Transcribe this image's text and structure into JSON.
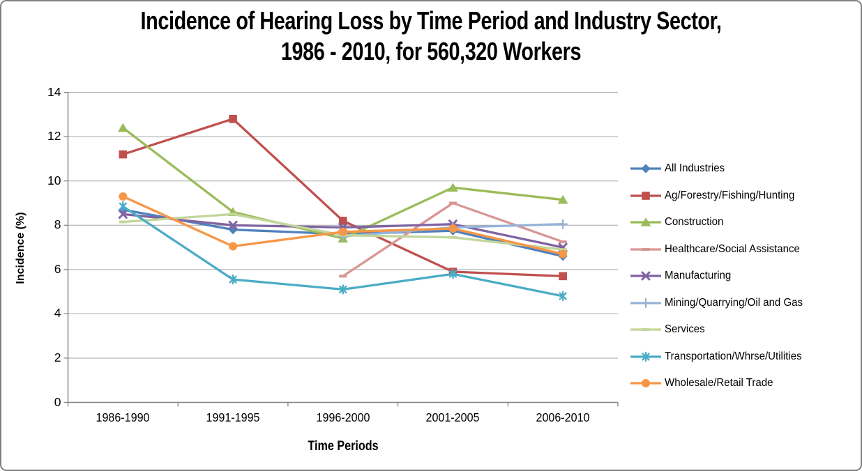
{
  "chart_data": {
    "type": "line",
    "title_line1": "Incidence of Hearing Loss by Time Period and Industry Sector,",
    "title_line2": "1986 - 2010, for 560,320 Workers",
    "xlabel": "Time Periods",
    "ylabel": "Incidence (%)",
    "categories": [
      "1986-1990",
      "1991-1995",
      "1996-2000",
      "2001-2005",
      "2006-2010"
    ],
    "ylim": [
      0,
      14
    ],
    "yticks": [
      0,
      2,
      4,
      6,
      8,
      10,
      12,
      14
    ],
    "grid": true,
    "legend_position": "right",
    "series": [
      {
        "name": "All Industries",
        "color": "#4F81BD",
        "marker": "diamond",
        "values": [
          8.7,
          7.8,
          7.6,
          7.75,
          6.6
        ]
      },
      {
        "name": "Ag/Forestry/Fishing/Hunting",
        "color": "#C0504D",
        "marker": "square",
        "values": [
          11.2,
          12.8,
          8.2,
          5.9,
          5.7
        ]
      },
      {
        "name": "Construction",
        "color": "#9BBB59",
        "marker": "triangle",
        "values": [
          12.4,
          8.6,
          7.4,
          9.7,
          9.15
        ]
      },
      {
        "name": "Healthcare/Social Assistance",
        "color": "#D99694",
        "marker": "dash",
        "values": [
          null,
          null,
          5.7,
          9.0,
          7.25
        ]
      },
      {
        "name": "Manufacturing",
        "color": "#8064A2",
        "marker": "x",
        "values": [
          8.5,
          8.0,
          7.9,
          8.05,
          7.0
        ]
      },
      {
        "name": "Mining/Quarrying/Oil and Gas",
        "color": "#95B3D7",
        "marker": "plus",
        "values": [
          null,
          null,
          7.5,
          7.9,
          8.05
        ]
      },
      {
        "name": "Services",
        "color": "#C3D69B",
        "marker": "dash",
        "values": [
          8.15,
          8.5,
          7.55,
          7.45,
          6.9
        ]
      },
      {
        "name": "Transportation/Whrse/Utilities",
        "color": "#4BACC6",
        "marker": "asterisk",
        "values": [
          8.85,
          5.55,
          5.1,
          5.8,
          4.8
        ]
      },
      {
        "name": "Wholesale/Retail Trade",
        "color": "#F79646",
        "marker": "circle",
        "values": [
          9.3,
          7.05,
          7.7,
          7.85,
          6.7
        ]
      }
    ],
    "colors": {
      "gridline": "#A6A6A6",
      "axis": "#7F7F7F",
      "frame_border": "#7F7F7F",
      "background": "#FFFFFF",
      "text": "#000000"
    }
  }
}
